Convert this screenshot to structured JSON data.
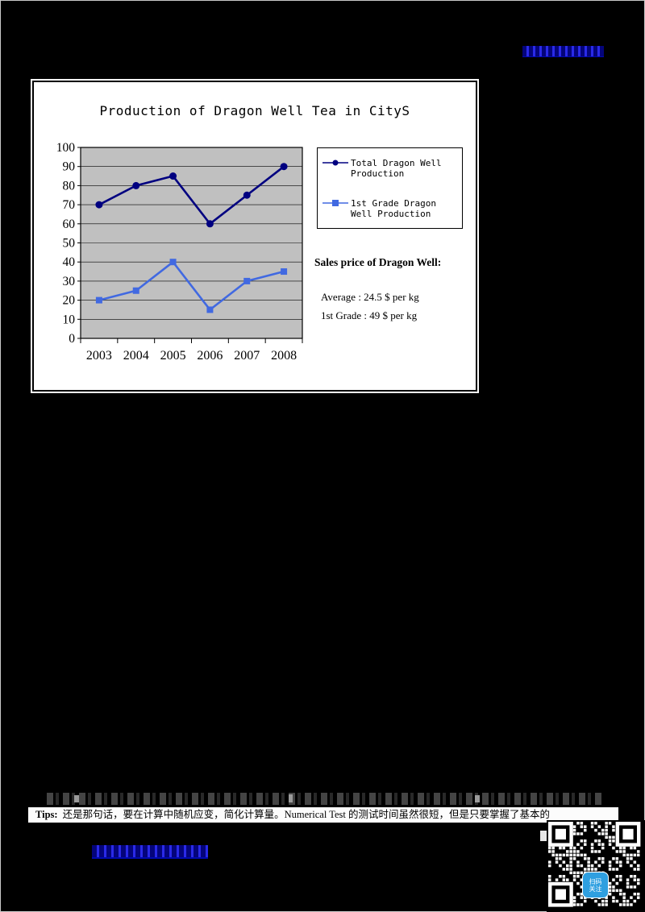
{
  "header": {
    "highlighted_link": {
      "text": "",
      "color": "#2A2AE8"
    }
  },
  "chart_panel": {
    "sales": {
      "heading": "Sales price of Dragon Well:",
      "lines": [
        "Average : 24.5 $ per kg",
        "1st Grade : 49 $ per kg"
      ]
    }
  },
  "chart_data": {
    "type": "line",
    "title": "Production of Dragon Well Tea in CityS",
    "categories": [
      "2003",
      "2004",
      "2005",
      "2006",
      "2007",
      "2008"
    ],
    "series": [
      {
        "name": "Total Dragon Well Production",
        "values": [
          70,
          80,
          85,
          60,
          75,
          90
        ],
        "color": "#000080",
        "marker": "circle"
      },
      {
        "name": "1st Grade Dragon Well Production",
        "values": [
          20,
          25,
          40,
          15,
          30,
          35
        ],
        "color": "#4169E1",
        "marker": "square"
      }
    ],
    "ylim": [
      0,
      100
    ],
    "ytick_step": 10,
    "grid": true,
    "plot_bg": "#C0C0C0",
    "legend_position": "right"
  },
  "tips": {
    "label": "Tips:",
    "text": "还是那句话，要在计算中随机应变，简化计算量。Numerical Test 的测试时间虽然很短，但是只要掌握了基本的"
  },
  "footer": {
    "highlighted_link": {
      "text": "",
      "color": "#2A2AE8"
    }
  },
  "qr": {
    "badge_lines": [
      "扫码",
      "关注"
    ],
    "badge_color": "#2E9FE0"
  }
}
